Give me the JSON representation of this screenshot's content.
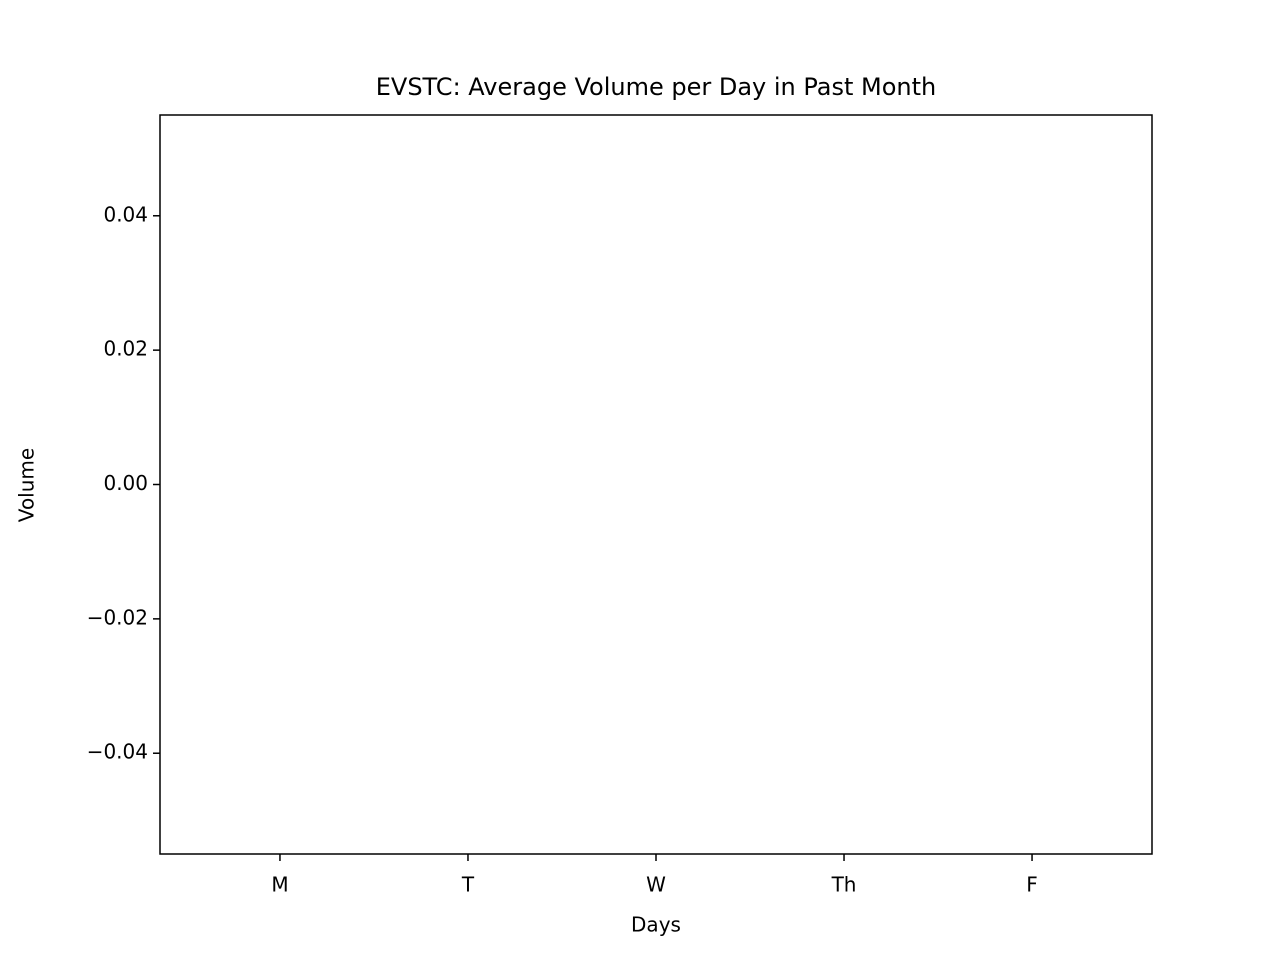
{
  "chart_data": {
    "type": "bar",
    "title": "EVSTC: Average Volume per Day in Past Month",
    "xlabel": "Days",
    "ylabel": "Volume",
    "categories": [
      "M",
      "T",
      "W",
      "Th",
      "F"
    ],
    "values": [
      0,
      0,
      0,
      0,
      0
    ],
    "color": "#1f77b4",
    "ylim": [
      -0.055,
      0.055
    ],
    "yticks": [
      {
        "value": -0.04,
        "label": "−0.04"
      },
      {
        "value": -0.02,
        "label": "−0.02"
      },
      {
        "value": 0,
        "label": "0.00"
      },
      0.02,
      0.04
    ],
    "grid": false
  }
}
